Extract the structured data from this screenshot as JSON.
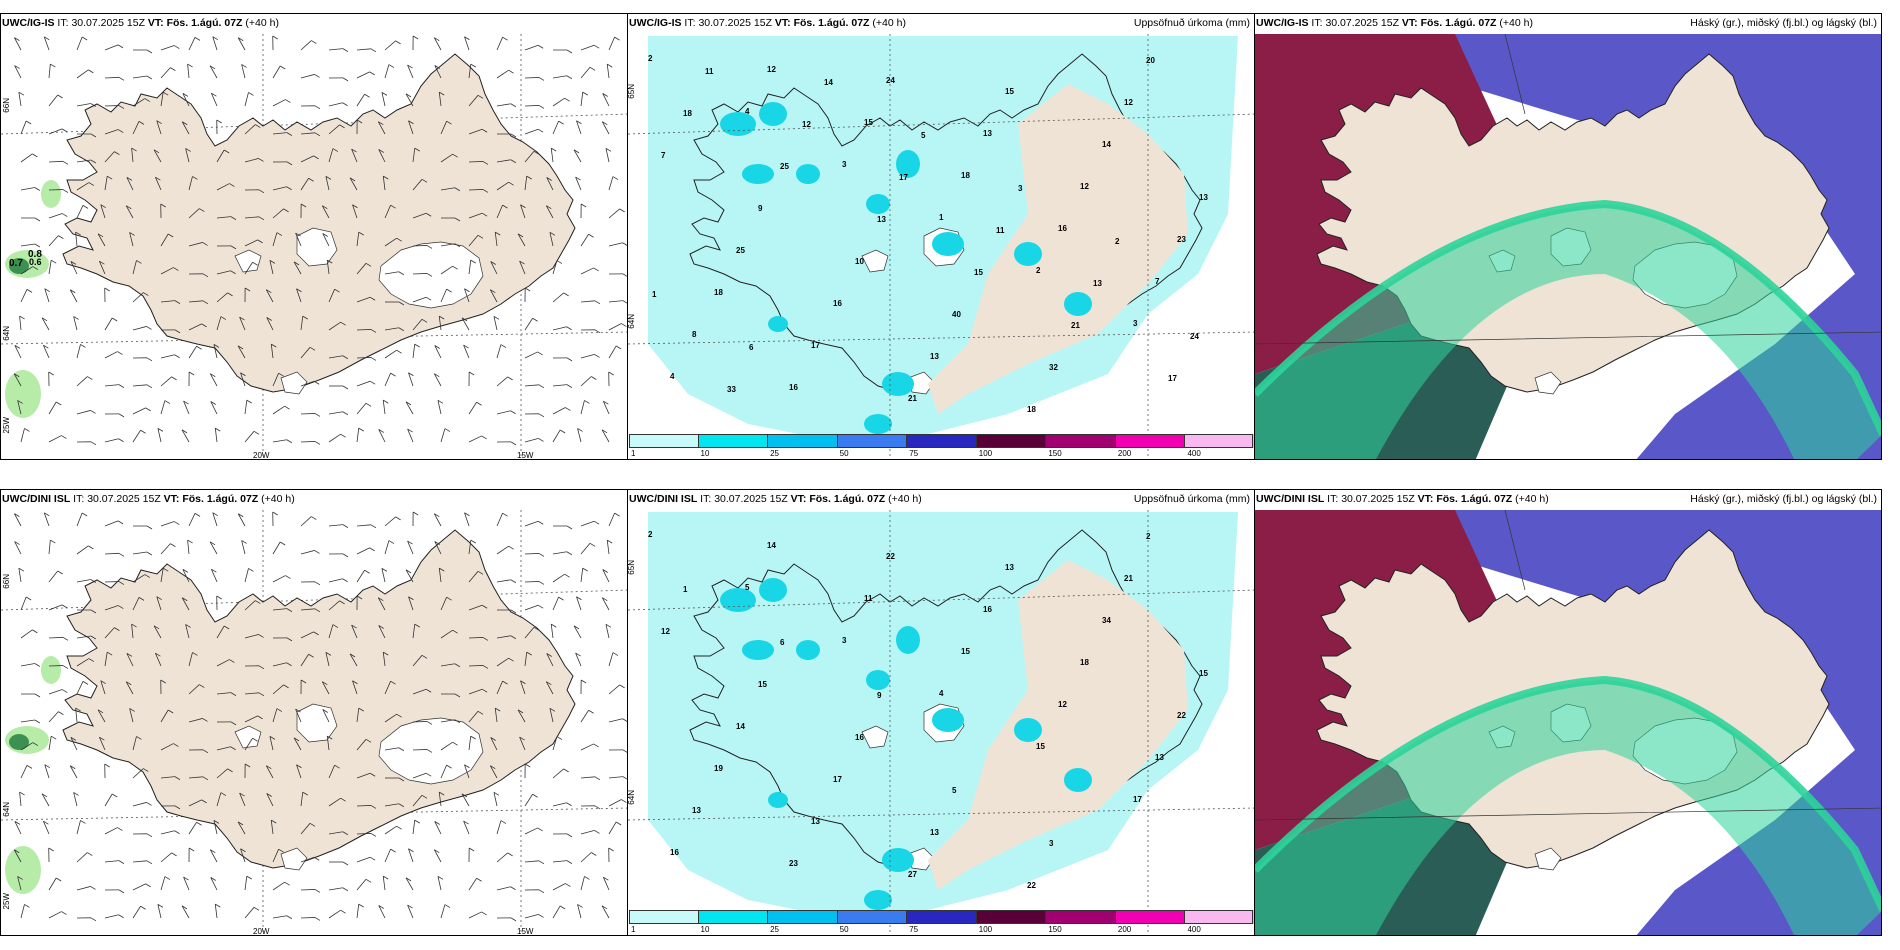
{
  "colors": {
    "land": "#efe3d5",
    "sea_light": "#b8f6f6",
    "wind_sea": "#ffffff",
    "glacier": "#ffffff",
    "green_patch": "#b6eba8",
    "green_dark": "#1e7a3c",
    "high_cloud_green": "#2ed39a",
    "mid_cloud_red": "#8b1e47",
    "low_cloud_blue": "#5a58c8",
    "dark_teal": "#2a5d55"
  },
  "panels": [
    {
      "model": "UWC/IG-IS",
      "it_label": "IT:",
      "it_value": "30.07.2025 15Z",
      "vt_label": "VT: Fös. 1.ágú. 07Z",
      "lead": "(+40 h)",
      "right_title": ""
    },
    {
      "model": "UWC/IG-IS",
      "it_label": "IT:",
      "it_value": "30.07.2025 15Z",
      "vt_label": "VT: Fös. 1.ágú. 07Z",
      "lead": "(+40 h)",
      "right_title": "Uppsöfnuð úrkoma (mm)"
    },
    {
      "model": "UWC/IG-IS",
      "it_label": "IT:",
      "it_value": "30.07.2025 15Z",
      "vt_label": "VT: Fös. 1.ágú. 07Z",
      "lead": "(+40 h)",
      "right_title": "Háský (gr.), miðský (fj.bl.) og lágský (bl.)"
    },
    {
      "model": "UWC/DINI ISL",
      "it_label": "IT:",
      "it_value": "30.07.2025 15Z",
      "vt_label": "VT: Fös. 1.ágú. 07Z",
      "lead": "(+40 h)",
      "right_title": ""
    },
    {
      "model": "UWC/DINI ISL",
      "it_label": "IT:",
      "it_value": "30.07.2025 15Z",
      "vt_label": "VT: Fös. 1.ágú. 07Z",
      "lead": "(+40 h)",
      "right_title": "Uppsöfnuð úrkoma (mm)"
    },
    {
      "model": "UWC/DINI ISL",
      "it_label": "IT:",
      "it_value": "30.07.2025 15Z",
      "vt_label": "VT: Fös. 1.ágú. 07Z",
      "lead": "(+40 h)",
      "right_title": "Háský (gr.), miðský (fj.bl.) og lágský (bl.)"
    }
  ],
  "axis_labels": {
    "lat_66": "66N",
    "lat_64": "64N",
    "lon_20": "20W",
    "lon_15": "15W",
    "lon_25": "25W",
    "precip_lat_65": "65N",
    "precip_lat_64": "64N"
  },
  "wind_values": [
    "0.8",
    "0.7",
    "0.6"
  ],
  "colorbar": {
    "ticks": [
      "1",
      "10",
      "25",
      "50",
      "75",
      "100",
      "150",
      "200",
      "400"
    ],
    "colors": [
      "#c8fafa",
      "#00e6f0",
      "#00c0f0",
      "#3a7cf0",
      "#2828c0",
      "#5a0038",
      "#a00070",
      "#f000b0",
      "#f8b8f0"
    ]
  },
  "precip_numbers_top": [
    "2",
    "4",
    "3",
    "1",
    "2",
    "3",
    "4",
    "12",
    "15",
    "18",
    "16",
    "7",
    "8",
    "16",
    "24",
    "13",
    "12",
    "23",
    "18",
    "17",
    "21",
    "15",
    "14",
    "13",
    "25",
    "16",
    "13",
    "18",
    "12",
    "7",
    "9",
    "10",
    "40",
    "32",
    "20",
    "18",
    "25",
    "13",
    "15",
    "21",
    "17",
    "11",
    "12",
    "17",
    "11",
    "13",
    "24",
    "33",
    "14",
    "5",
    "3",
    "2",
    "1",
    "6"
  ],
  "precip_numbers_bottom": [
    "2",
    "5",
    "3",
    "4",
    "15",
    "17",
    "16",
    "14",
    "11",
    "15",
    "12",
    "13",
    "13",
    "23",
    "22",
    "16",
    "18",
    "22",
    "19",
    "13",
    "27",
    "13",
    "34",
    "15",
    "14",
    "17",
    "13",
    "22",
    "21",
    "12",
    "15",
    "16",
    "5",
    "3",
    "2",
    "1",
    "6",
    "9"
  ]
}
